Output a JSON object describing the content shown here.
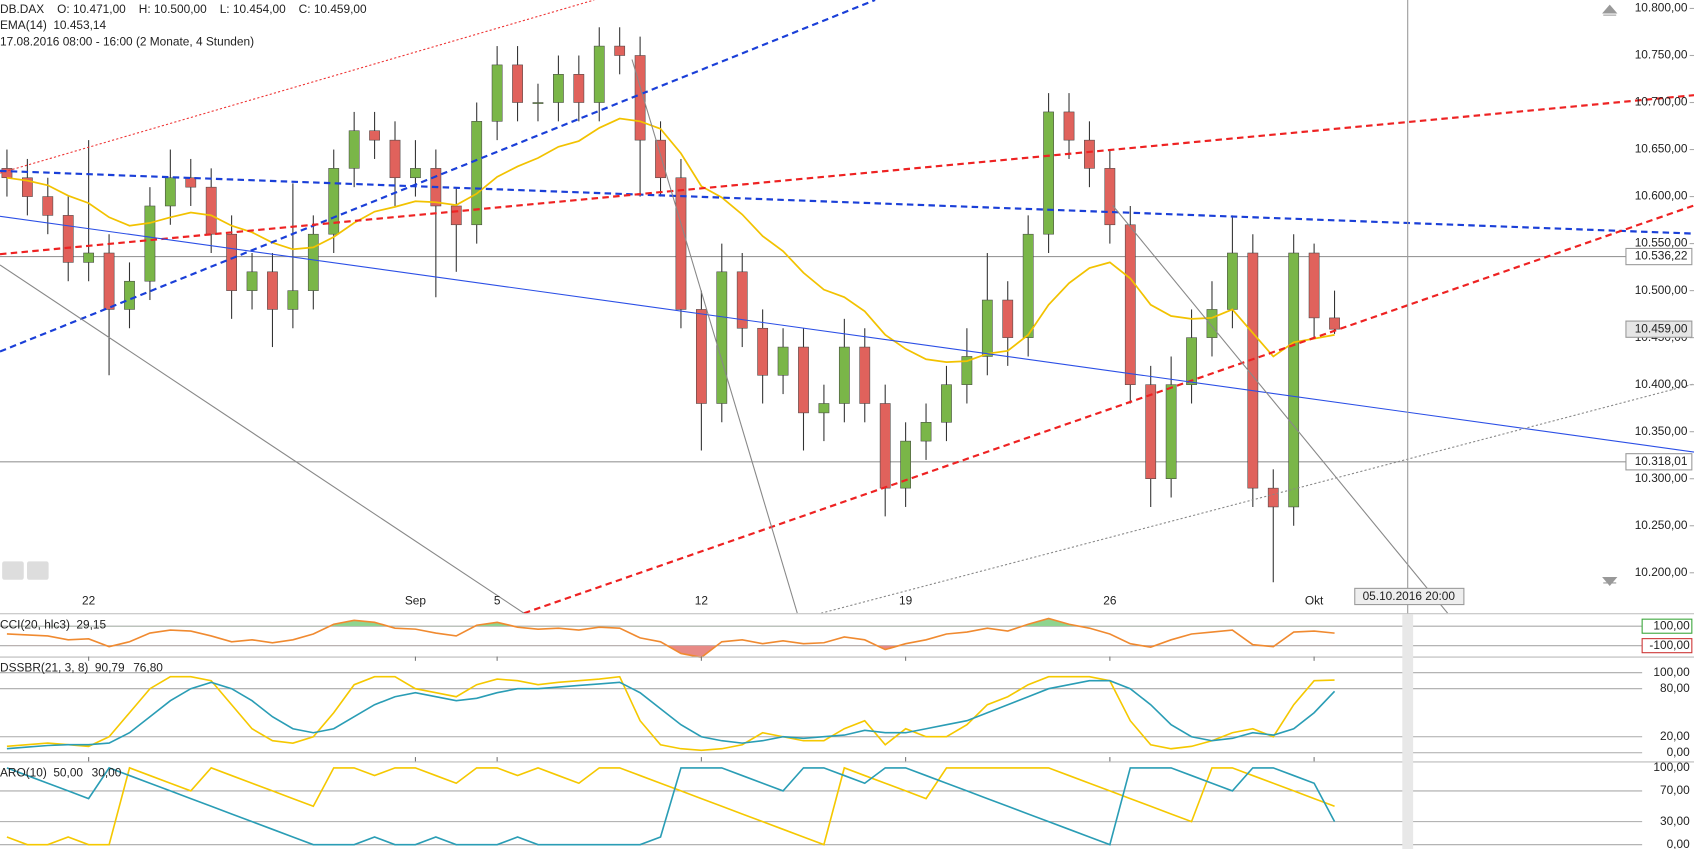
{
  "chart_data": [
    {
      "type": "candlestick",
      "symbol": "DB.DAX",
      "ohlc_labels": [
        "O: 10.471,00",
        "H: 10.500,00",
        "L: 10.454,00",
        "C: 10.459,00"
      ],
      "subtitle": "17.08.2016 08:00 - 16:00 (2 Monate, 4 Stunden)",
      "up_color": "#7ab648",
      "down_color": "#e0625c",
      "x": [
        -2,
        -1.5,
        -1,
        -0.5,
        0,
        0.5,
        1,
        1.5,
        2,
        2.5,
        3,
        3.5,
        4,
        4.5,
        5,
        5.5,
        6,
        6.5,
        7,
        7.5,
        8,
        8.5,
        9,
        9.5,
        10,
        10.5,
        11,
        11.5,
        12,
        12.5,
        13,
        13.5,
        14,
        14.5,
        15,
        15.5,
        16,
        16.5,
        17,
        17.5,
        18,
        18.5,
        19,
        19.5,
        20,
        20.5,
        21,
        21.5,
        22,
        22.5,
        23,
        23.5,
        24,
        24.5,
        25,
        25.5,
        26,
        26.5,
        27,
        27.5,
        28,
        28.5,
        29,
        29.5,
        30,
        30.5
      ],
      "open": [
        10630,
        10620,
        10600,
        10580,
        10530,
        10540,
        10480,
        10510,
        10590,
        10620,
        10610,
        10560,
        10500,
        10520,
        10480,
        10500,
        10560,
        10630,
        10670,
        10660,
        10620,
        10630,
        10590,
        10570,
        10680,
        10740,
        10700,
        10700,
        10730,
        10700,
        10760,
        10750,
        10660,
        10620,
        10480,
        10380,
        10520,
        10460,
        10410,
        10440,
        10370,
        10380,
        10440,
        10380,
        10290,
        10340,
        10360,
        10400,
        10430,
        10490,
        10450,
        10560,
        10690,
        10660,
        10630,
        10570,
        10400,
        10300,
        10400,
        10450,
        10480,
        10540,
        10290,
        10270,
        10540,
        10471
      ],
      "high": [
        10650,
        10640,
        10620,
        10600,
        10660,
        10560,
        10530,
        10610,
        10650,
        10640,
        10630,
        10580,
        10540,
        10540,
        10614,
        10580,
        10650,
        10690,
        10690,
        10680,
        10660,
        10650,
        10610,
        10700,
        10760,
        10760,
        10720,
        10750,
        10750,
        10780,
        10780,
        10770,
        10680,
        10640,
        10500,
        10550,
        10540,
        10480,
        10460,
        10460,
        10400,
        10470,
        10460,
        10400,
        10360,
        10380,
        10420,
        10460,
        10540,
        10510,
        10580,
        10710,
        10710,
        10680,
        10650,
        10590,
        10420,
        10430,
        10480,
        10510,
        10580,
        10560,
        10310,
        10560,
        10550,
        10500
      ],
      "low": [
        10600,
        10580,
        10560,
        10510,
        10510,
        10410,
        10460,
        10490,
        10570,
        10590,
        10540,
        10470,
        10480,
        10440,
        10460,
        10480,
        10540,
        10610,
        10640,
        10590,
        10600,
        10493,
        10520,
        10550,
        10660,
        10680,
        10680,
        10680,
        10680,
        10680,
        10730,
        10600,
        10600,
        10460,
        10330,
        10360,
        10440,
        10380,
        10390,
        10330,
        10340,
        10360,
        10360,
        10260,
        10270,
        10320,
        10340,
        10380,
        10410,
        10420,
        10430,
        10540,
        10640,
        10610,
        10550,
        10380,
        10270,
        10280,
        10380,
        10430,
        10460,
        10270,
        10190,
        10250,
        10450,
        10454
      ],
      "close": [
        10620,
        10600,
        10580,
        10530,
        10540,
        10480,
        10510,
        10590,
        10620,
        10610,
        10560,
        10500,
        10520,
        10480,
        10500,
        10560,
        10630,
        10670,
        10660,
        10620,
        10630,
        10590,
        10570,
        10680,
        10740,
        10700,
        10700,
        10730,
        10700,
        10760,
        10750,
        10660,
        10620,
        10480,
        10380,
        10520,
        10460,
        10410,
        10440,
        10370,
        10380,
        10440,
        10380,
        10290,
        10340,
        10360,
        10400,
        10430,
        10490,
        10450,
        10560,
        10690,
        10660,
        10630,
        10570,
        10400,
        10300,
        10400,
        10450,
        10480,
        10540,
        10290,
        10270,
        10540,
        10471,
        10459
      ],
      "ema": {
        "name": "EMA(14)",
        "readout": "10.453,14",
        "color": "#f2c200",
        "values": [
          10620,
          10617,
          10612,
          10601,
          10593,
          10578,
          10569,
          10572,
          10578,
          10583,
          10580,
          10569,
          10562,
          10551,
          10544,
          10546,
          10557,
          10572,
          10584,
          10589,
          10595,
          10594,
          10591,
          10603,
          10621,
          10632,
          10641,
          10653,
          10659,
          10673,
          10683,
          10680,
          10672,
          10646,
          10611,
          10599,
          10581,
          10558,
          10542,
          10519,
          10501,
          10493,
          10478,
          10453,
          10438,
          10427,
          10424,
          10425,
          10433,
          10436,
          10453,
          10485,
          10508,
          10524,
          10530,
          10513,
          10485,
          10473,
          10470,
          10471,
          10480,
          10455,
          10430,
          10445,
          10449,
          10453
        ]
      },
      "xlim": [
        -2.17,
        39.3
      ],
      "xticks": [
        {
          "value": 0,
          "label": "22"
        },
        {
          "value": 8,
          "label": "Sep"
        },
        {
          "value": 10,
          "label": "5"
        },
        {
          "value": 15,
          "label": "12"
        },
        {
          "value": 20,
          "label": "19"
        },
        {
          "value": 25,
          "label": "26"
        },
        {
          "value": 30,
          "label": "Okt"
        }
      ],
      "ylim": [
        10157,
        10809
      ],
      "yticks": [
        {
          "value": 10200,
          "label": "10.200,00"
        },
        {
          "value": 10250,
          "label": "10.250,00"
        },
        {
          "value": 10300,
          "label": "10.300,00"
        },
        {
          "value": 10350,
          "label": "10.350,00"
        },
        {
          "value": 10400,
          "label": "10.400,00"
        },
        {
          "value": 10450,
          "label": "10.450,00"
        },
        {
          "value": 10500,
          "label": "10.500,00"
        },
        {
          "value": 10550,
          "label": "10.550,00"
        },
        {
          "value": 10600,
          "label": "10.600,00"
        },
        {
          "value": 10650,
          "label": "10.650,00"
        },
        {
          "value": 10700,
          "label": "10.700,00"
        },
        {
          "value": 10750,
          "label": "10.750,00"
        },
        {
          "value": 10800,
          "label": "10.800,00"
        }
      ],
      "price_tags": [
        {
          "value": 10536.22,
          "label": "10.536,22",
          "line": true
        },
        {
          "value": 10459,
          "label": "10.459,00",
          "line": false
        },
        {
          "value": 10318.01,
          "label": "10.318,01",
          "line": true
        }
      ],
      "crosshair_label": "05.10.2016 20:00"
    },
    {
      "type": "line",
      "title": "CCI(20, hlc3)",
      "title_color": "#e07020",
      "readouts": [
        "29,15"
      ],
      "series": [
        {
          "color": "#f08a30",
          "values": [
            20,
            10,
            0,
            -40,
            -30,
            -110,
            -60,
            30,
            60,
            50,
            0,
            -60,
            -40,
            -70,
            -40,
            20,
            120,
            160,
            140,
            80,
            70,
            30,
            0,
            110,
            140,
            90,
            70,
            80,
            60,
            90,
            80,
            -20,
            -60,
            -180,
            -220,
            -60,
            -40,
            -80,
            -50,
            -80,
            -70,
            -10,
            -40,
            -140,
            -80,
            -40,
            20,
            40,
            80,
            50,
            120,
            180,
            120,
            80,
            20,
            -80,
            -115,
            -40,
            20,
            40,
            60,
            -90,
            -110,
            40,
            50,
            29.15
          ]
        }
      ],
      "fills": {
        "above": 100,
        "above_color": "#8fd48f",
        "below": -100,
        "below_color": "#e88a86"
      },
      "ylim": [
        -211,
        222
      ],
      "yticks": [
        {
          "value": 100,
          "label": "100,00"
        },
        {
          "value": -100,
          "label": "-100,00"
        }
      ],
      "tag_colors": [
        "#3aa63a",
        "#cc3333"
      ]
    },
    {
      "type": "line",
      "title": "DSSBR(21, 3, 8)",
      "title_color": "#d4a800",
      "readouts": [
        "90,79",
        "76,80"
      ],
      "series": [
        {
          "color": "#f5c800",
          "values": [
            8,
            10,
            12,
            10,
            8,
            20,
            50,
            80,
            95,
            95,
            90,
            60,
            30,
            15,
            12,
            20,
            50,
            85,
            95,
            95,
            80,
            75,
            70,
            85,
            92,
            90,
            85,
            88,
            90,
            92,
            95,
            40,
            10,
            5,
            3,
            5,
            10,
            25,
            20,
            15,
            15,
            30,
            40,
            10,
            30,
            20,
            20,
            35,
            60,
            70,
            85,
            95,
            95,
            95,
            90,
            40,
            10,
            5,
            8,
            15,
            25,
            30,
            20,
            60,
            90,
            90.79
          ]
        },
        {
          "color": "#2a9db5",
          "values": [
            5,
            7,
            9,
            10,
            10,
            12,
            25,
            45,
            65,
            80,
            88,
            80,
            65,
            45,
            30,
            25,
            30,
            45,
            60,
            70,
            75,
            70,
            65,
            68,
            75,
            80,
            80,
            82,
            84,
            86,
            88,
            75,
            55,
            35,
            20,
            15,
            12,
            15,
            20,
            18,
            20,
            22,
            28,
            25,
            25,
            30,
            35,
            40,
            50,
            60,
            70,
            80,
            85,
            90,
            90,
            80,
            60,
            35,
            20,
            15,
            18,
            25,
            22,
            30,
            50,
            76.8
          ]
        }
      ],
      "ylim": [
        -10.8,
        118.9
      ],
      "yticks": [
        {
          "value": 100,
          "label": "100,00"
        },
        {
          "value": 80,
          "label": "80,00"
        },
        {
          "value": 20,
          "label": "20,00"
        },
        {
          "value": 0,
          "label": "0,00"
        }
      ]
    },
    {
      "type": "line",
      "title": "ARO(10)",
      "title_color": "#d4a800",
      "readouts": [
        "50,00",
        "30,00"
      ],
      "series": [
        {
          "color": "#f5c800",
          "values": [
            10,
            0,
            0,
            10,
            0,
            0,
            100,
            90,
            80,
            70,
            100,
            90,
            80,
            70,
            60,
            50,
            100,
            100,
            90,
            100,
            100,
            90,
            80,
            100,
            100,
            90,
            100,
            90,
            80,
            100,
            100,
            90,
            80,
            70,
            60,
            50,
            40,
            30,
            20,
            10,
            0,
            100,
            90,
            80,
            70,
            60,
            100,
            100,
            100,
            100,
            100,
            100,
            90,
            80,
            70,
            60,
            50,
            40,
            30,
            100,
            100,
            90,
            80,
            70,
            60,
            50
          ]
        },
        {
          "color": "#2a9db5",
          "values": [
            100,
            90,
            80,
            70,
            60,
            100,
            90,
            80,
            70,
            60,
            50,
            40,
            30,
            20,
            10,
            0,
            0,
            0,
            10,
            0,
            0,
            10,
            0,
            0,
            0,
            10,
            0,
            0,
            0,
            0,
            0,
            0,
            10,
            100,
            100,
            100,
            90,
            80,
            70,
            100,
            100,
            90,
            80,
            100,
            100,
            90,
            80,
            70,
            60,
            50,
            40,
            30,
            20,
            10,
            0,
            100,
            100,
            100,
            90,
            80,
            70,
            100,
            100,
            90,
            80,
            30
          ]
        }
      ],
      "ylim": [
        -5.6,
        107
      ],
      "yticks": [
        {
          "value": 100,
          "label": "100,00"
        },
        {
          "value": 70,
          "label": "70,00"
        },
        {
          "value": 30,
          "label": "30,00"
        },
        {
          "value": 0,
          "label": "0,00"
        }
      ]
    }
  ]
}
